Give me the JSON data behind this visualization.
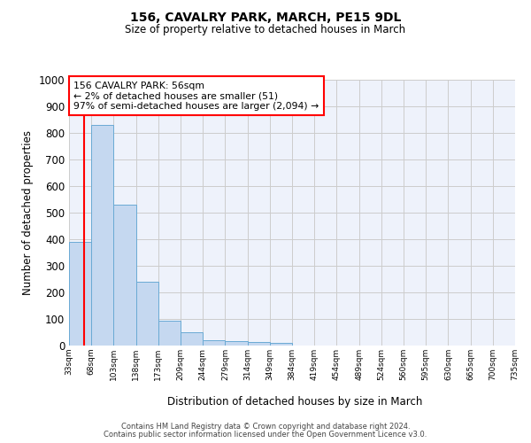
{
  "title1": "156, CAVALRY PARK, MARCH, PE15 9DL",
  "title2": "Size of property relative to detached houses in March",
  "xlabel": "Distribution of detached houses by size in March",
  "ylabel": "Number of detached properties",
  "bin_labels": [
    "33sqm",
    "68sqm",
    "103sqm",
    "138sqm",
    "173sqm",
    "209sqm",
    "244sqm",
    "279sqm",
    "314sqm",
    "349sqm",
    "384sqm",
    "419sqm",
    "454sqm",
    "489sqm",
    "524sqm",
    "560sqm",
    "595sqm",
    "630sqm",
    "665sqm",
    "700sqm",
    "735sqm"
  ],
  "bar_values": [
    390,
    830,
    530,
    240,
    95,
    50,
    20,
    17,
    12,
    10,
    0,
    0,
    0,
    0,
    0,
    0,
    0,
    0,
    0,
    0
  ],
  "bar_color": "#c5d8f0",
  "bar_edge_color": "#6aaad4",
  "grid_color": "#cccccc",
  "bg_color": "#eef2fb",
  "ylim": [
    0,
    1000
  ],
  "yticks": [
    0,
    100,
    200,
    300,
    400,
    500,
    600,
    700,
    800,
    900,
    1000
  ],
  "annotation_text": "156 CAVALRY PARK: 56sqm\n← 2% of detached houses are smaller (51)\n97% of semi-detached houses are larger (2,094) →",
  "footer1": "Contains HM Land Registry data © Crown copyright and database right 2024.",
  "footer2": "Contains public sector information licensed under the Open Government Licence v3.0."
}
